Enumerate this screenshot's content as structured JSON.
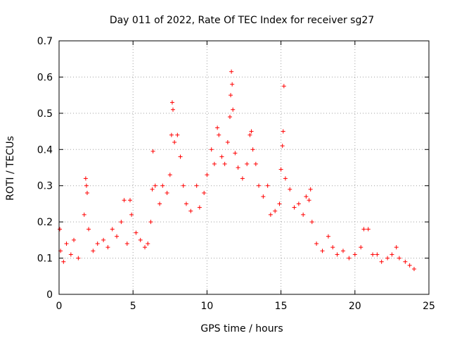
{
  "chart_data": {
    "type": "scatter",
    "title": "Day 011 of 2022, Rate Of TEC Index for receiver sg27",
    "xlabel": "GPS time / hours",
    "ylabel": "ROTI / TECUs",
    "xlim": [
      0,
      25
    ],
    "ylim": [
      0,
      0.7
    ],
    "xticks": [
      0,
      5,
      10,
      15,
      20,
      25
    ],
    "xtick_labels": [
      "0",
      "5",
      "10",
      "15",
      "20",
      "25"
    ],
    "yticks": [
      0,
      0.1,
      0.2,
      0.3,
      0.4,
      0.5,
      0.6,
      0.7
    ],
    "ytick_labels": [
      "0",
      "0.1",
      "0.2",
      "0.3",
      "0.4",
      "0.5",
      "0.6",
      "0.7"
    ],
    "grid": true,
    "marker": "+",
    "color": "#ff0000",
    "series": [
      {
        "points": [
          [
            0.05,
            0.18
          ],
          [
            0.1,
            0.12
          ],
          [
            0.3,
            0.09
          ],
          [
            0.5,
            0.14
          ],
          [
            0.8,
            0.11
          ],
          [
            1.0,
            0.15
          ],
          [
            1.3,
            0.1
          ],
          [
            1.7,
            0.22
          ],
          [
            1.8,
            0.32
          ],
          [
            1.85,
            0.3
          ],
          [
            1.9,
            0.28
          ],
          [
            2.0,
            0.18
          ],
          [
            2.3,
            0.12
          ],
          [
            2.6,
            0.14
          ],
          [
            3.0,
            0.15
          ],
          [
            3.3,
            0.13
          ],
          [
            3.6,
            0.18
          ],
          [
            3.9,
            0.16
          ],
          [
            4.2,
            0.2
          ],
          [
            4.4,
            0.26
          ],
          [
            4.6,
            0.14
          ],
          [
            4.8,
            0.26
          ],
          [
            4.9,
            0.22
          ],
          [
            5.2,
            0.17
          ],
          [
            5.5,
            0.15
          ],
          [
            5.8,
            0.13
          ],
          [
            6.0,
            0.14
          ],
          [
            6.2,
            0.2
          ],
          [
            6.3,
            0.29
          ],
          [
            6.35,
            0.395
          ],
          [
            6.5,
            0.3
          ],
          [
            6.8,
            0.25
          ],
          [
            7.0,
            0.3
          ],
          [
            7.3,
            0.28
          ],
          [
            7.5,
            0.33
          ],
          [
            7.6,
            0.44
          ],
          [
            7.65,
            0.53
          ],
          [
            7.7,
            0.51
          ],
          [
            7.8,
            0.42
          ],
          [
            8.0,
            0.44
          ],
          [
            8.2,
            0.38
          ],
          [
            8.4,
            0.3
          ],
          [
            8.6,
            0.25
          ],
          [
            8.9,
            0.23
          ],
          [
            9.3,
            0.3
          ],
          [
            9.5,
            0.24
          ],
          [
            9.8,
            0.28
          ],
          [
            10.0,
            0.33
          ],
          [
            10.3,
            0.4
          ],
          [
            10.5,
            0.36
          ],
          [
            10.7,
            0.46
          ],
          [
            10.8,
            0.44
          ],
          [
            11.0,
            0.38
          ],
          [
            11.2,
            0.36
          ],
          [
            11.4,
            0.42
          ],
          [
            11.55,
            0.49
          ],
          [
            11.6,
            0.55
          ],
          [
            11.65,
            0.615
          ],
          [
            11.7,
            0.58
          ],
          [
            11.75,
            0.51
          ],
          [
            11.9,
            0.39
          ],
          [
            12.1,
            0.35
          ],
          [
            12.4,
            0.32
          ],
          [
            12.7,
            0.36
          ],
          [
            12.9,
            0.44
          ],
          [
            13.0,
            0.45
          ],
          [
            13.1,
            0.4
          ],
          [
            13.3,
            0.36
          ],
          [
            13.5,
            0.3
          ],
          [
            13.8,
            0.27
          ],
          [
            14.1,
            0.3
          ],
          [
            14.3,
            0.22
          ],
          [
            14.6,
            0.23
          ],
          [
            14.9,
            0.25
          ],
          [
            15.0,
            0.345
          ],
          [
            15.1,
            0.41
          ],
          [
            15.15,
            0.45
          ],
          [
            15.2,
            0.575
          ],
          [
            15.3,
            0.32
          ],
          [
            15.6,
            0.29
          ],
          [
            15.9,
            0.24
          ],
          [
            16.2,
            0.25
          ],
          [
            16.5,
            0.22
          ],
          [
            16.7,
            0.27
          ],
          [
            16.9,
            0.26
          ],
          [
            17.0,
            0.29
          ],
          [
            17.1,
            0.2
          ],
          [
            17.4,
            0.14
          ],
          [
            17.8,
            0.12
          ],
          [
            18.2,
            0.16
          ],
          [
            18.5,
            0.13
          ],
          [
            18.8,
            0.11
          ],
          [
            19.2,
            0.12
          ],
          [
            19.6,
            0.1
          ],
          [
            20.0,
            0.11
          ],
          [
            20.4,
            0.13
          ],
          [
            20.6,
            0.18
          ],
          [
            20.9,
            0.18
          ],
          [
            21.2,
            0.11
          ],
          [
            21.5,
            0.11
          ],
          [
            21.8,
            0.09
          ],
          [
            22.2,
            0.1
          ],
          [
            22.5,
            0.11
          ],
          [
            22.8,
            0.13
          ],
          [
            23.0,
            0.1
          ],
          [
            23.4,
            0.09
          ],
          [
            23.7,
            0.08
          ],
          [
            24.0,
            0.07
          ]
        ]
      }
    ]
  }
}
